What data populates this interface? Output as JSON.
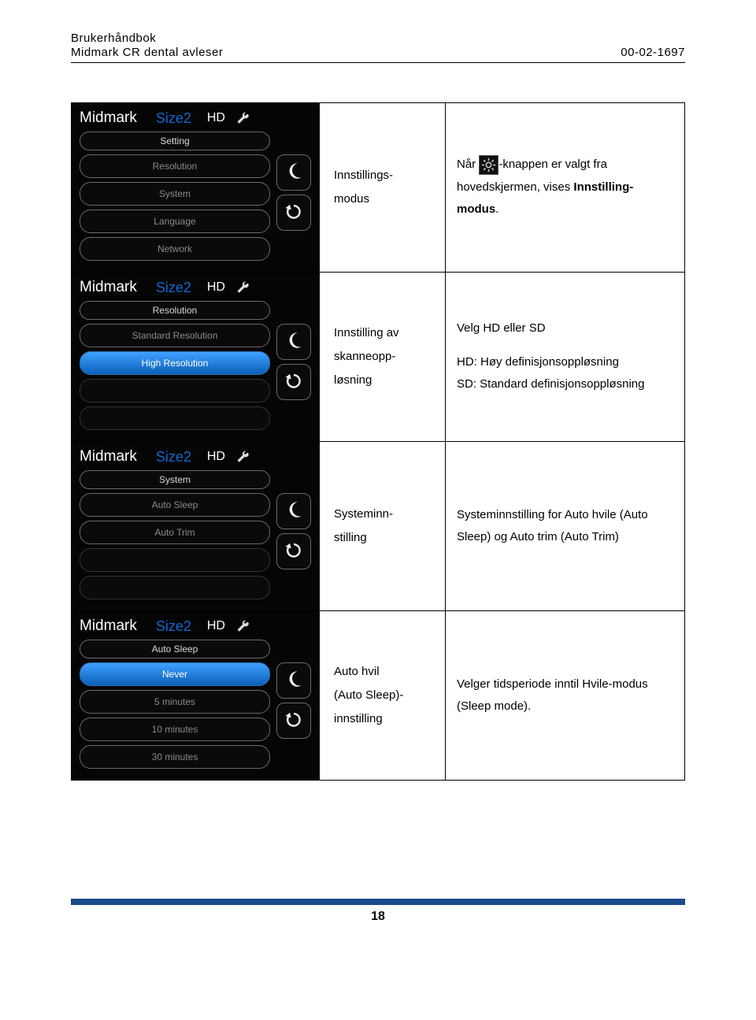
{
  "header": {
    "line1": "Brukerhåndbok",
    "line2_left": "Midmark CR dental avleser",
    "line2_right": "00-02-1697"
  },
  "device": {
    "brand": "Midmark",
    "size": "Size2",
    "hd": "HD",
    "crescent_color": "#f2f2f2",
    "undo_color": "#f2f2f2"
  },
  "rows": [
    {
      "screen": {
        "title": "Setting",
        "items": [
          "Resolution",
          "System",
          "Language",
          "Network"
        ],
        "selected": -1,
        "extra_empty": 0,
        "side_buttons": 2
      },
      "mid": "Innstillings-\nmodus",
      "desc_prefix": "Når ",
      "desc_has_icon": true,
      "desc_after_icon": "-knappen er valgt fra hovedskjermen, vises ",
      "desc_bold": "Innstilling-modus",
      "desc_suffix": "."
    },
    {
      "screen": {
        "title": "Resolution",
        "items": [
          "Standard Resolution",
          "High Resolution"
        ],
        "selected": 1,
        "extra_empty": 2,
        "side_buttons": 2
      },
      "mid": "Innstilling av\nskanneopp-\nløsning",
      "desc_lines": [
        "Velg HD eller SD",
        "",
        "HD: Høy definisjonsoppløsning",
        "SD: Standard definisjonsoppløsning"
      ]
    },
    {
      "screen": {
        "title": "System",
        "items": [
          "Auto Sleep",
          "Auto Trim"
        ],
        "selected": -1,
        "extra_empty": 2,
        "side_buttons": 2
      },
      "mid": "Systeminn-\nstilling",
      "desc_lines": [
        "Systeminnstilling for Auto hvile (Auto Sleep) og Auto trim (Auto Trim)"
      ]
    },
    {
      "screen": {
        "title": "Auto Sleep",
        "items": [
          "Never",
          "5 minutes",
          "10 minutes",
          "30 minutes"
        ],
        "selected": 0,
        "extra_empty": 0,
        "side_buttons": 2
      },
      "mid": "Auto hvil\n(Auto Sleep)-\ninnstilling",
      "desc_lines": [
        "Velger tidsperiode inntil Hvile-modus (Sleep mode)."
      ]
    }
  ],
  "footer": {
    "page": "18",
    "bar_color": "#1a4a8a"
  }
}
